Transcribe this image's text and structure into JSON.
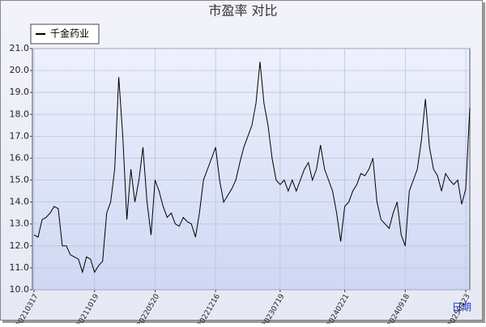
{
  "chart_data": {
    "type": "line",
    "title": "市盈率  对比",
    "x_label": "日期",
    "categories": [
      "20210317",
      null,
      null,
      null,
      null,
      null,
      null,
      null,
      null,
      null,
      null,
      null,
      null,
      null,
      null,
      "20211019",
      null,
      null,
      null,
      null,
      null,
      null,
      null,
      null,
      null,
      null,
      null,
      null,
      null,
      null,
      "20220520",
      null,
      null,
      null,
      null,
      null,
      null,
      null,
      null,
      null,
      null,
      null,
      null,
      null,
      null,
      "20221216",
      null,
      null,
      null,
      null,
      null,
      null,
      null,
      null,
      null,
      null,
      null,
      null,
      null,
      null,
      null,
      "20230719",
      null,
      null,
      null,
      null,
      null,
      null,
      null,
      null,
      null,
      null,
      null,
      null,
      null,
      null,
      null,
      "20240221",
      null,
      null,
      null,
      null,
      null,
      null,
      null,
      null,
      null,
      null,
      null,
      null,
      null,
      null,
      "20240918",
      null,
      null,
      null,
      null,
      null,
      null,
      null,
      null,
      null,
      null,
      null,
      null,
      null,
      null,
      "20250423",
      null
    ],
    "series": [
      {
        "name": "千金药业",
        "color": "#000000",
        "values": [
          12.5,
          12.4,
          13.2,
          13.3,
          13.5,
          13.8,
          13.7,
          12.0,
          12.0,
          11.6,
          11.5,
          11.4,
          10.8,
          11.5,
          11.4,
          10.8,
          11.1,
          11.3,
          13.5,
          14.0,
          15.5,
          19.7,
          17.0,
          13.2,
          15.5,
          14.0,
          15.0,
          16.5,
          14.0,
          12.5,
          15.0,
          14.5,
          13.8,
          13.3,
          13.5,
          13.0,
          12.9,
          13.3,
          13.1,
          13.0,
          12.4,
          13.5,
          15.0,
          15.5,
          16.0,
          16.5,
          15.0,
          14.0,
          14.3,
          14.6,
          15.0,
          15.8,
          16.5,
          17.0,
          17.5,
          18.5,
          20.4,
          18.5,
          17.5,
          16.0,
          15.0,
          14.8,
          15.0,
          14.5,
          15.0,
          14.5,
          15.0,
          15.5,
          15.8,
          15.0,
          15.5,
          16.6,
          15.5,
          15.0,
          14.5,
          13.5,
          12.2,
          13.8,
          14.0,
          14.5,
          14.8,
          15.3,
          15.2,
          15.5,
          16.0,
          14.0,
          13.2,
          13.0,
          12.8,
          13.5,
          14.0,
          12.5,
          12.0,
          14.5,
          15.0,
          15.5,
          16.8,
          18.7,
          16.5,
          15.5,
          15.2,
          14.5,
          15.3,
          15.0,
          14.8,
          15.0,
          13.9,
          14.6,
          18.3
        ]
      }
    ],
    "ylim": [
      10,
      21
    ],
    "yticks": [
      {
        "value": 10,
        "label": "10.0"
      },
      {
        "value": 11,
        "label": "11.0"
      },
      {
        "value": 12,
        "label": "12.0"
      },
      {
        "value": 13,
        "label": "13.0"
      },
      {
        "value": 14,
        "label": "14.0"
      },
      {
        "value": 15,
        "label": "15.0"
      },
      {
        "value": 16,
        "label": "16.0"
      },
      {
        "value": 17,
        "label": "17.0"
      },
      {
        "value": 18,
        "label": "18.0"
      },
      {
        "value": 19,
        "label": "19.0"
      },
      {
        "value": 20,
        "label": "20.0"
      },
      {
        "value": 21,
        "label": "21.0"
      }
    ],
    "grid": true,
    "legend": "top-left"
  }
}
